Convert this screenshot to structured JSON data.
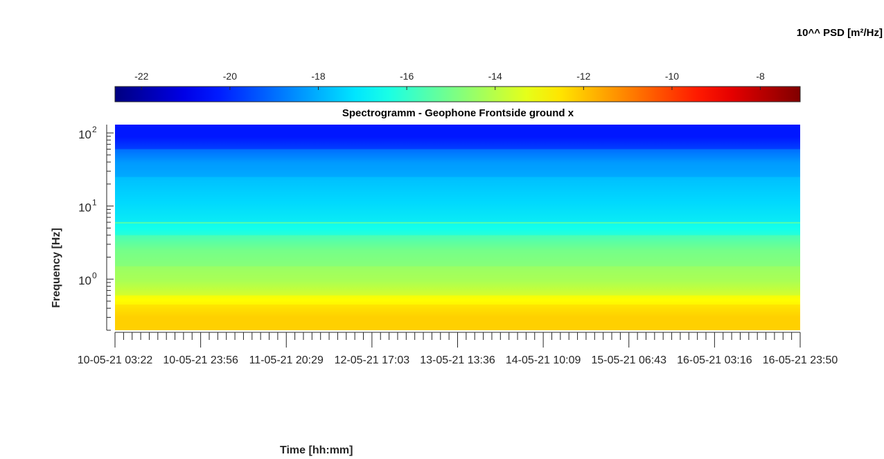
{
  "chart_data": {
    "type": "heatmap",
    "title": "Spectrogramm - Geophone Frontside ground x",
    "xlabel": "Time [hh:mm]",
    "ylabel": "Frequency [Hz]",
    "colorbar": {
      "label": "10^^ PSD [m²/Hz]",
      "placement": "top",
      "colormap": "jet",
      "range": [
        -22.6,
        -7.1
      ],
      "ticks": [
        -22,
        -20,
        -18,
        -16,
        -14,
        -12,
        -10,
        -8
      ]
    },
    "x_tick_labels": [
      "10-05-21 03:22",
      "10-05-21 23:56",
      "11-05-21 20:29",
      "12-05-21 17:03",
      "13-05-21 13:36",
      "14-05-21 10:09",
      "15-05-21 06:43",
      "16-05-21 03:16",
      "16-05-21 23:50"
    ],
    "y_scale": "log",
    "y_range": [
      0.2,
      130
    ],
    "y_ticks": [
      {
        "value": 1,
        "base": "10",
        "exp": "0"
      },
      {
        "value": 10,
        "base": "10",
        "exp": "1"
      },
      {
        "value": 100,
        "base": "10",
        "exp": "2"
      }
    ],
    "bands": [
      {
        "f_min": 0.2,
        "f_max": 0.45,
        "psd": -12.2
      },
      {
        "f_min": 0.45,
        "f_max": 0.6,
        "psd": -12.9
      },
      {
        "f_min": 0.6,
        "f_max": 1.5,
        "psd": -14.2
      },
      {
        "f_min": 1.5,
        "f_max": 4,
        "psd": -15.0
      },
      {
        "f_min": 4,
        "f_max": 6,
        "psd": -16.5
      },
      {
        "f_min": 6,
        "f_max": 25,
        "psd": -17.4
      },
      {
        "f_min": 25,
        "f_max": 60,
        "psd": -18.3
      },
      {
        "f_min": 60,
        "f_max": 130,
        "psd": -20.3
      }
    ],
    "colors": {
      "axis": "#262626",
      "title": "#000000"
    }
  }
}
